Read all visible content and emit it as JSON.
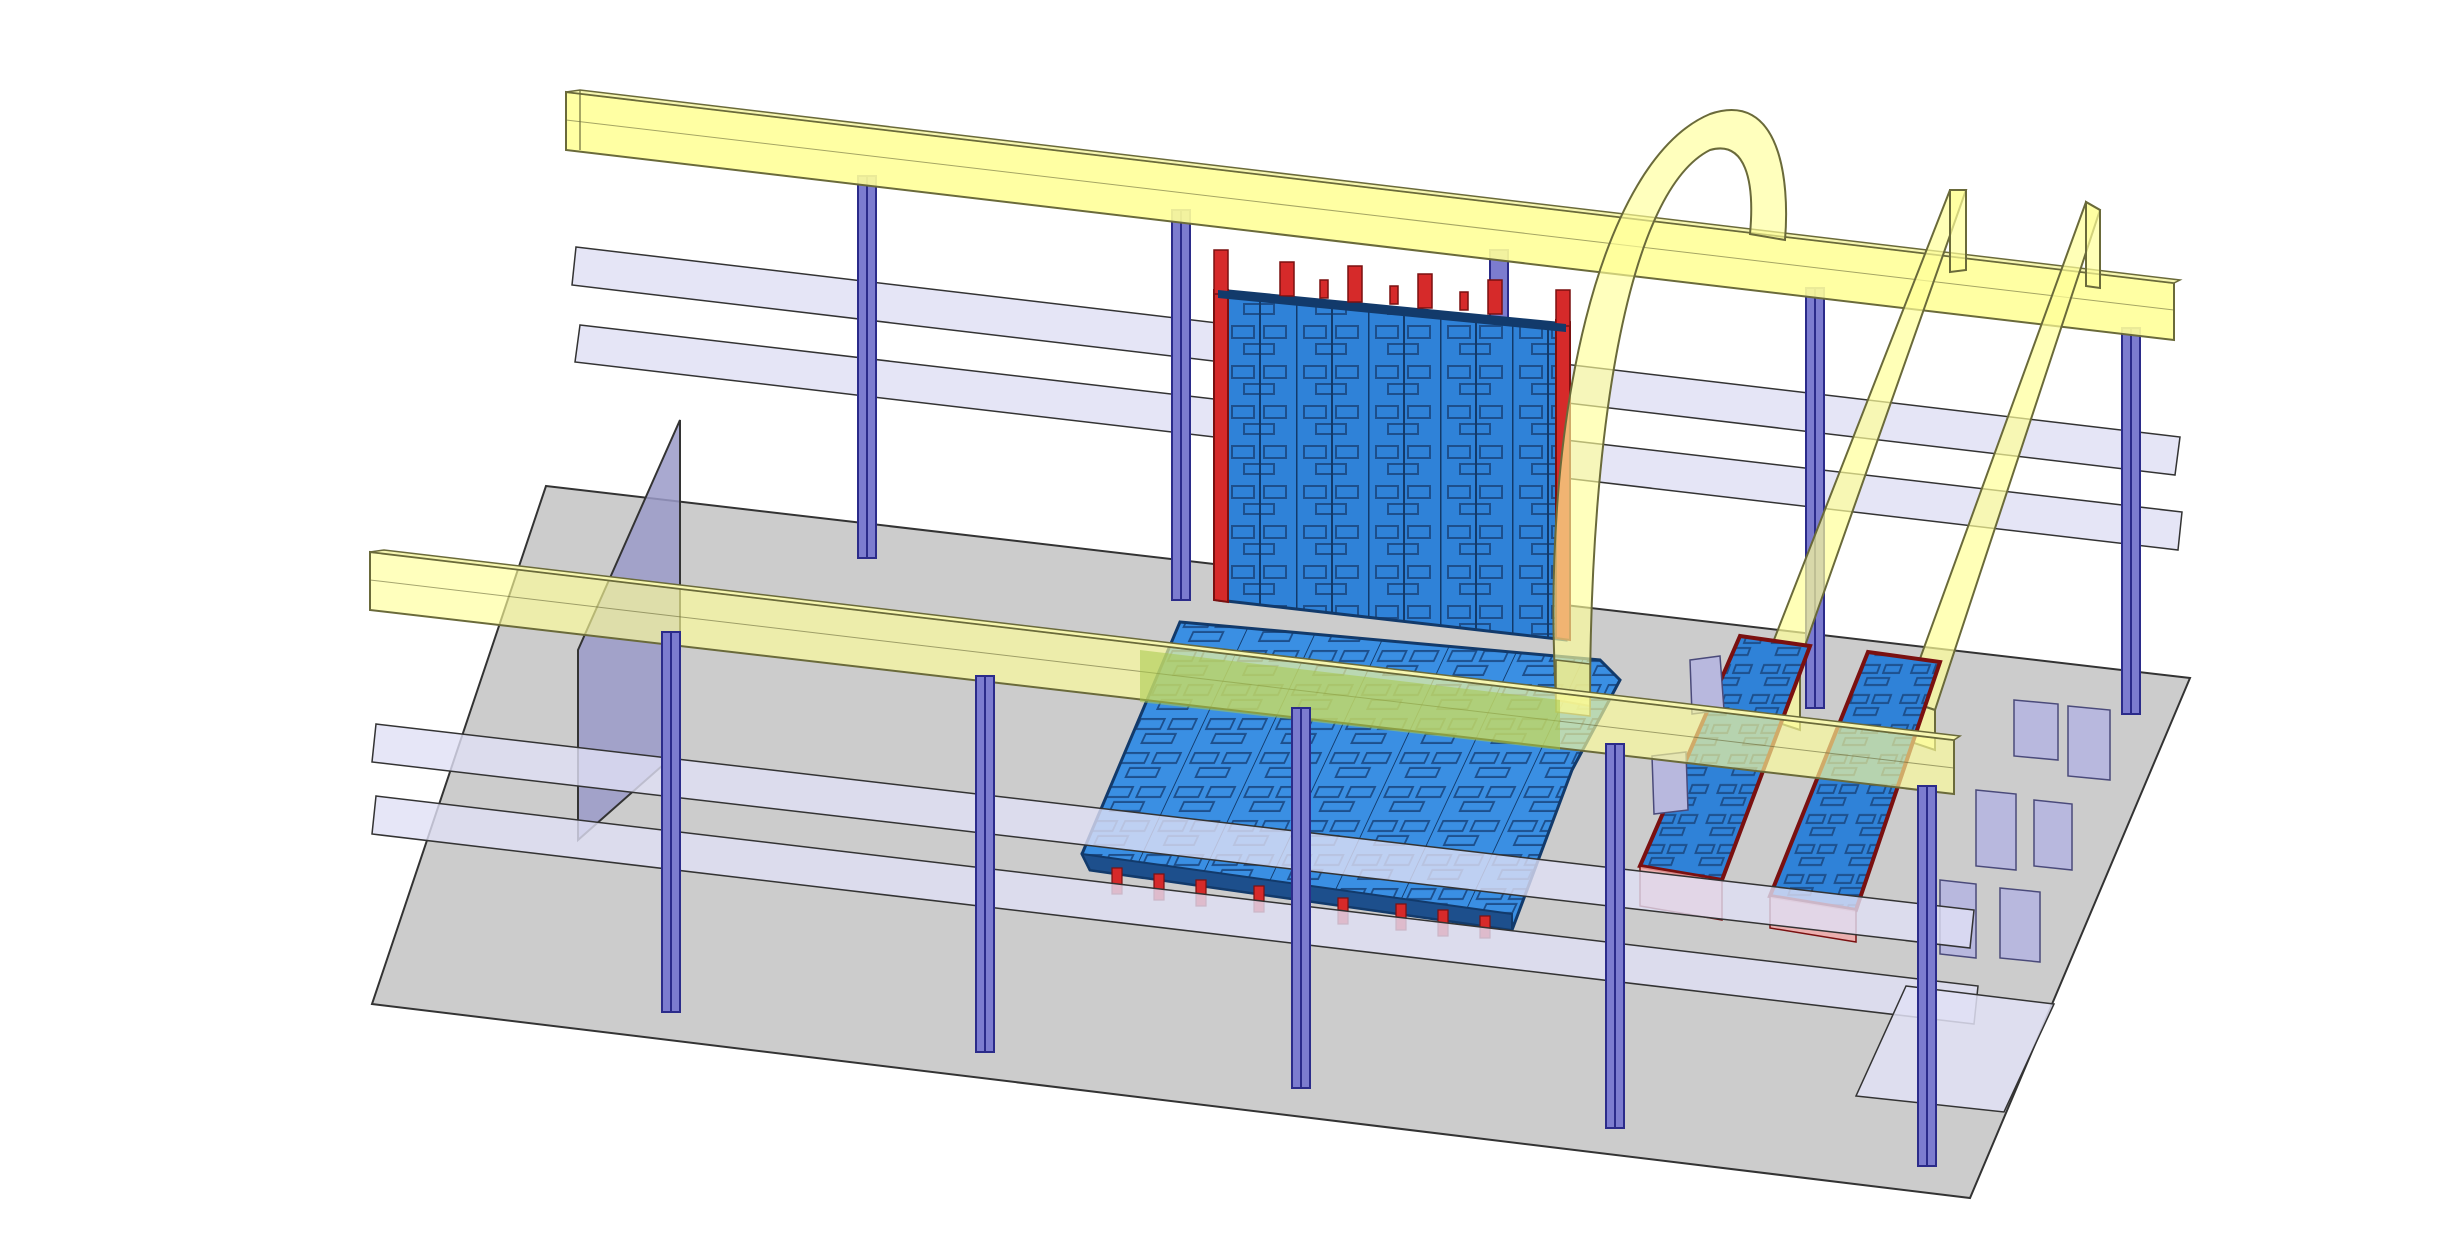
{
  "scene": {
    "description_visible_text": "",
    "colors": {
      "background": "#ffffff",
      "floor": "#cccccc",
      "rail": "#ffff99",
      "rail_edge": "#8a8a55",
      "rail_plane": "#e0e0f5",
      "column": "#7c7ccf",
      "column_dark": "#2b2b8a",
      "panel_blue": "#2f82d8",
      "panel_blue_dark": "#1d4f8c",
      "panel_red": "#d62a2a",
      "block": "#b8b8de",
      "block_side": "#8a8ab8",
      "wall": "#9a9ac8"
    }
  }
}
